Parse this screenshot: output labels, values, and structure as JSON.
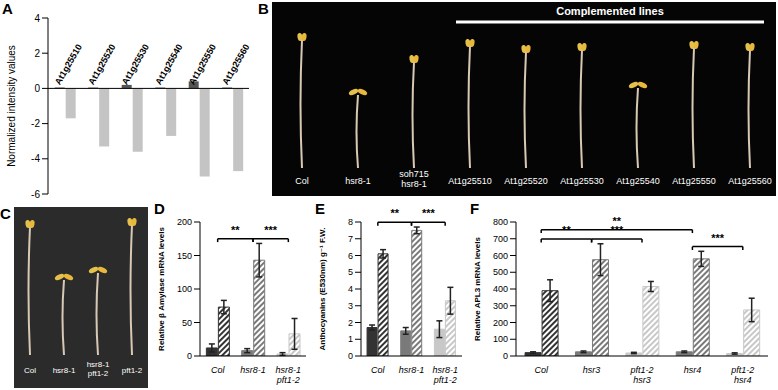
{
  "chart_data": [
    {
      "type": "bar",
      "title": "A",
      "categories": [
        "At1g25510",
        "At1g25520",
        "At1g25530",
        "At1g25540",
        "At1g25550",
        "At1g25560"
      ],
      "series": [
        {
          "color": "#555555",
          "values": [
            0.05,
            0.05,
            0.2,
            0.05,
            0.4,
            0.05
          ]
        },
        {
          "color": "#c4c4c4",
          "values": [
            -1.7,
            -3.3,
            -3.6,
            -2.7,
            -5.0,
            -4.7
          ]
        }
      ],
      "y_label": "Normalized intensity values",
      "ylim": [
        -6,
        4
      ],
      "yticks": [
        -6,
        -4,
        -2,
        0,
        2,
        4
      ]
    },
    {
      "type": "bar",
      "title": "D",
      "categories": [
        "Col",
        "hsr8-1",
        "hsr8-1 pft1-2"
      ],
      "series": [
        {
          "values": [
            12,
            8,
            3
          ],
          "errors": [
            6,
            3,
            2
          ],
          "colors": [
            "#333333",
            "#7a7a7a",
            "#c8c8c8"
          ]
        },
        {
          "values": [
            73,
            143,
            33
          ],
          "errors": [
            10,
            25,
            23
          ],
          "colors": [
            "#333333",
            "#7a7a7a",
            "#c8c8c8"
          ]
        }
      ],
      "y_label": "Relative β Amylase mRNA levels",
      "ylim": [
        0,
        200
      ],
      "yticks": [
        0,
        50,
        100,
        150,
        200
      ],
      "annotations": [
        {
          "text": "**",
          "between": [
            "Col",
            "hsr8-1"
          ]
        },
        {
          "text": "***",
          "between": [
            "hsr8-1",
            "hsr8-1 pft1-2"
          ]
        }
      ]
    },
    {
      "type": "bar",
      "title": "E",
      "categories": [
        "Col",
        "hsr8-1",
        "hsr8-1 pft1-2"
      ],
      "series": [
        {
          "values": [
            1.7,
            1.5,
            1.6
          ],
          "errors": [
            0.15,
            0.2,
            0.5
          ],
          "colors": [
            "#333333",
            "#7a7a7a",
            "#c8c8c8"
          ]
        },
        {
          "values": [
            6.1,
            7.5,
            3.3
          ],
          "errors": [
            0.25,
            0.2,
            0.8
          ],
          "colors": [
            "#333333",
            "#7a7a7a",
            "#c8c8c8"
          ]
        }
      ],
      "y_label": "Anthocyanins (E530nm) g⁻¹ F.W.",
      "ylim": [
        0,
        8
      ],
      "yticks": [
        0,
        1,
        2,
        3,
        4,
        5,
        6,
        7,
        8
      ],
      "annotations": [
        {
          "text": "**",
          "between": [
            "Col",
            "hsr8-1"
          ]
        },
        {
          "text": "***",
          "between": [
            "hsr8-1",
            "hsr8-1 pft1-2"
          ]
        }
      ]
    },
    {
      "type": "bar",
      "title": "F",
      "categories": [
        "Col",
        "hsr3",
        "pft1-2 hsr3",
        "hsr4",
        "pft1-2 hsr4"
      ],
      "series": [
        {
          "values": [
            20,
            25,
            18,
            25,
            15
          ],
          "errors": [
            5,
            5,
            4,
            5,
            4
          ],
          "colors": [
            "#333333",
            "#7a7a7a",
            "#c8c8c8",
            "#7a7a7a",
            "#c8c8c8"
          ]
        },
        {
          "values": [
            390,
            575,
            415,
            580,
            275
          ],
          "errors": [
            65,
            95,
            30,
            45,
            70
          ],
          "colors": [
            "#333333",
            "#7a7a7a",
            "#c8c8c8",
            "#7a7a7a",
            "#c8c8c8"
          ]
        }
      ],
      "y_label": "Relative APL3 mRNA levels",
      "ylim": [
        0,
        800
      ],
      "yticks": [
        0,
        100,
        200,
        300,
        400,
        500,
        600,
        700,
        800
      ],
      "annotations": [
        {
          "text": "**",
          "between": [
            "Col",
            "hsr3"
          ]
        },
        {
          "text": "***",
          "between": [
            "hsr3",
            "pft1-2 hsr3"
          ]
        },
        {
          "text": "**",
          "between": [
            "Col",
            "hsr4"
          ]
        },
        {
          "text": "***",
          "between": [
            "hsr4",
            "pft1-2 hsr4"
          ]
        }
      ]
    }
  ],
  "photos": [
    {
      "panel": "B",
      "labels": [
        "Col",
        "hsr8-1",
        "soh715 hsr8-1",
        "At1g25510",
        "At1g25520",
        "At1g25530",
        "At1g25540",
        "At1g25550",
        "At1g25560"
      ],
      "group_label": "Complemented lines"
    },
    {
      "panel": "C",
      "labels": [
        "Col",
        "hsr8-1",
        "hsr8-1 pft1-2",
        "pft1-2"
      ]
    }
  ]
}
